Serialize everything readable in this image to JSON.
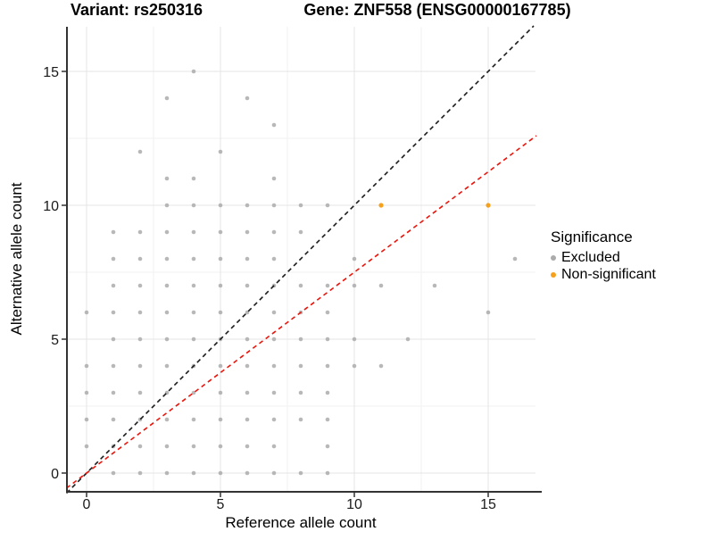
{
  "header": {
    "variant_title": "Variant: rs250316",
    "gene_title": "Gene: ZNF558 (ENSG00000167785)"
  },
  "chart_data": {
    "type": "scatter",
    "title": "Variant: rs250316 — Gene: ZNF558 (ENSG00000167785)",
    "xlabel": "Reference allele count",
    "ylabel": "Alternative allele count",
    "xlim": [
      -0.75,
      16.8
    ],
    "ylim": [
      -0.75,
      16.7
    ],
    "x_ticks": [
      0,
      5,
      10,
      15
    ],
    "y_ticks": [
      0,
      5,
      10,
      15
    ],
    "x_minor_ticks": [
      2.5,
      7.5,
      12.5
    ],
    "y_minor_ticks": [
      2.5,
      7.5,
      12.5
    ],
    "grid": "major and minor gridlines on white background",
    "legend_position": "right",
    "legend_title": "Significance",
    "colors": {
      "excluded": "#ababab",
      "non_significant": "#f5a11b",
      "identity_line": "#1a1a1a",
      "ratio_line": "#e8160c",
      "major_grid": "#e4e4e4",
      "minor_grid": "#f2f2f2",
      "axis_line": "#333333"
    },
    "series": [
      {
        "name": "Excluded",
        "color": "#ababab",
        "points": [
          [
            4,
            15
          ],
          [
            3,
            14
          ],
          [
            6,
            14
          ],
          [
            7,
            13
          ],
          [
            2,
            12
          ],
          [
            5,
            12
          ],
          [
            3,
            11
          ],
          [
            4,
            11
          ],
          [
            7,
            11
          ],
          [
            3,
            10
          ],
          [
            4,
            10
          ],
          [
            5,
            10
          ],
          [
            6,
            10
          ],
          [
            7,
            10
          ],
          [
            8,
            10
          ],
          [
            9,
            10
          ],
          [
            1,
            9
          ],
          [
            2,
            9
          ],
          [
            3,
            9
          ],
          [
            4,
            9
          ],
          [
            5,
            9
          ],
          [
            6,
            9
          ],
          [
            7,
            9
          ],
          [
            8,
            9
          ],
          [
            1,
            8
          ],
          [
            2,
            8
          ],
          [
            3,
            8
          ],
          [
            4,
            8
          ],
          [
            5,
            8
          ],
          [
            6,
            8
          ],
          [
            7,
            8
          ],
          [
            10,
            8
          ],
          [
            16,
            8
          ],
          [
            1,
            7
          ],
          [
            2,
            7
          ],
          [
            3,
            7
          ],
          [
            4,
            7
          ],
          [
            5,
            7
          ],
          [
            6,
            7
          ],
          [
            7,
            7
          ],
          [
            8,
            7
          ],
          [
            9,
            7
          ],
          [
            10,
            7
          ],
          [
            11,
            7
          ],
          [
            13,
            7
          ],
          [
            0,
            6
          ],
          [
            1,
            6
          ],
          [
            2,
            6
          ],
          [
            3,
            6
          ],
          [
            4,
            6
          ],
          [
            5,
            6
          ],
          [
            6,
            6
          ],
          [
            7,
            6
          ],
          [
            8,
            6
          ],
          [
            9,
            6
          ],
          [
            15,
            6
          ],
          [
            1,
            5
          ],
          [
            2,
            5
          ],
          [
            3,
            5
          ],
          [
            4,
            5
          ],
          [
            5,
            5
          ],
          [
            6,
            5
          ],
          [
            7,
            5
          ],
          [
            8,
            5
          ],
          [
            9,
            5
          ],
          [
            10,
            5
          ],
          [
            12,
            5
          ],
          [
            0,
            4
          ],
          [
            1,
            4
          ],
          [
            2,
            4
          ],
          [
            3,
            4
          ],
          [
            4,
            4
          ],
          [
            5,
            4
          ],
          [
            6,
            4
          ],
          [
            7,
            4
          ],
          [
            8,
            4
          ],
          [
            9,
            4
          ],
          [
            10,
            4
          ],
          [
            11,
            4
          ],
          [
            0,
            3
          ],
          [
            1,
            3
          ],
          [
            2,
            3
          ],
          [
            3,
            3
          ],
          [
            4,
            3
          ],
          [
            5,
            3
          ],
          [
            6,
            3
          ],
          [
            7,
            3
          ],
          [
            8,
            3
          ],
          [
            9,
            3
          ],
          [
            0,
            2
          ],
          [
            1,
            2
          ],
          [
            2,
            2
          ],
          [
            3,
            2
          ],
          [
            4,
            2
          ],
          [
            5,
            2
          ],
          [
            6,
            2
          ],
          [
            7,
            2
          ],
          [
            8,
            2
          ],
          [
            9,
            2
          ],
          [
            0,
            1
          ],
          [
            1,
            1
          ],
          [
            2,
            1
          ],
          [
            3,
            1
          ],
          [
            4,
            1
          ],
          [
            5,
            1
          ],
          [
            6,
            1
          ],
          [
            7,
            1
          ],
          [
            9,
            1
          ],
          [
            1,
            0
          ],
          [
            2,
            0
          ],
          [
            3,
            0
          ],
          [
            4,
            0
          ],
          [
            5,
            0
          ],
          [
            6,
            0
          ],
          [
            7,
            0
          ],
          [
            8,
            0
          ],
          [
            9,
            0
          ]
        ]
      },
      {
        "name": "Non-significant",
        "color": "#f5a11b",
        "points": [
          [
            11,
            10
          ],
          [
            15,
            10
          ]
        ]
      }
    ],
    "lines": [
      {
        "name": "identity-line",
        "style": "dashed",
        "color": "#1a1a1a",
        "slope": 1,
        "intercept": 0
      },
      {
        "name": "ratio-line",
        "style": "dashed",
        "color": "#e8160c",
        "slope": 0.75,
        "intercept": 0
      }
    ]
  }
}
